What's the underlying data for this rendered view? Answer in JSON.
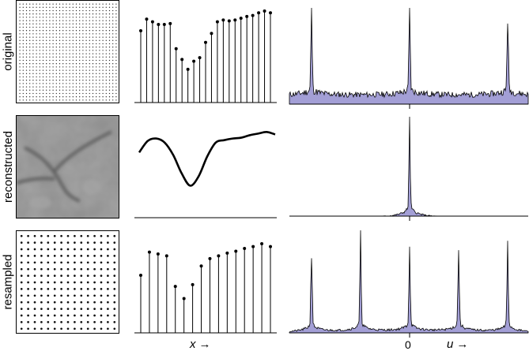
{
  "rows": [
    {
      "label": "original"
    },
    {
      "label": "reconstructed"
    },
    {
      "label": "resampled"
    }
  ],
  "axes": {
    "x_label": "x",
    "x_arrow": "→",
    "u_label": "u",
    "u_arrow": "→",
    "zero_tick": "0"
  },
  "signals": {
    "original_samples": [
      0.8,
      0.93,
      0.9,
      0.87,
      0.87,
      0.88,
      0.6,
      0.48,
      0.37,
      0.46,
      0.5,
      0.67,
      0.77,
      0.9,
      0.92,
      0.91,
      0.92,
      0.94,
      0.96,
      0.97,
      1.0,
      1.02,
      1.0
    ],
    "reconstructed_curve": [
      0.36,
      0.64,
      0.7,
      0.6,
      0.3,
      -0.15,
      -0.45,
      -0.22,
      0.26,
      0.6,
      0.66,
      0.7,
      0.72,
      0.78,
      0.82,
      0.86,
      0.8
    ],
    "resampled_samples": [
      0.62,
      0.87,
      0.85,
      0.83,
      0.5,
      0.37,
      0.52,
      0.72,
      0.8,
      0.83,
      0.86,
      0.88,
      0.91,
      0.93,
      0.96,
      0.93
    ]
  },
  "spectra": {
    "original_peak_u": [
      -1,
      0,
      1
    ],
    "resampled_peak_u": [
      -2,
      -1,
      0,
      1,
      2
    ],
    "fill_color": "#a39fd6",
    "stroke_color": "#000000"
  }
}
